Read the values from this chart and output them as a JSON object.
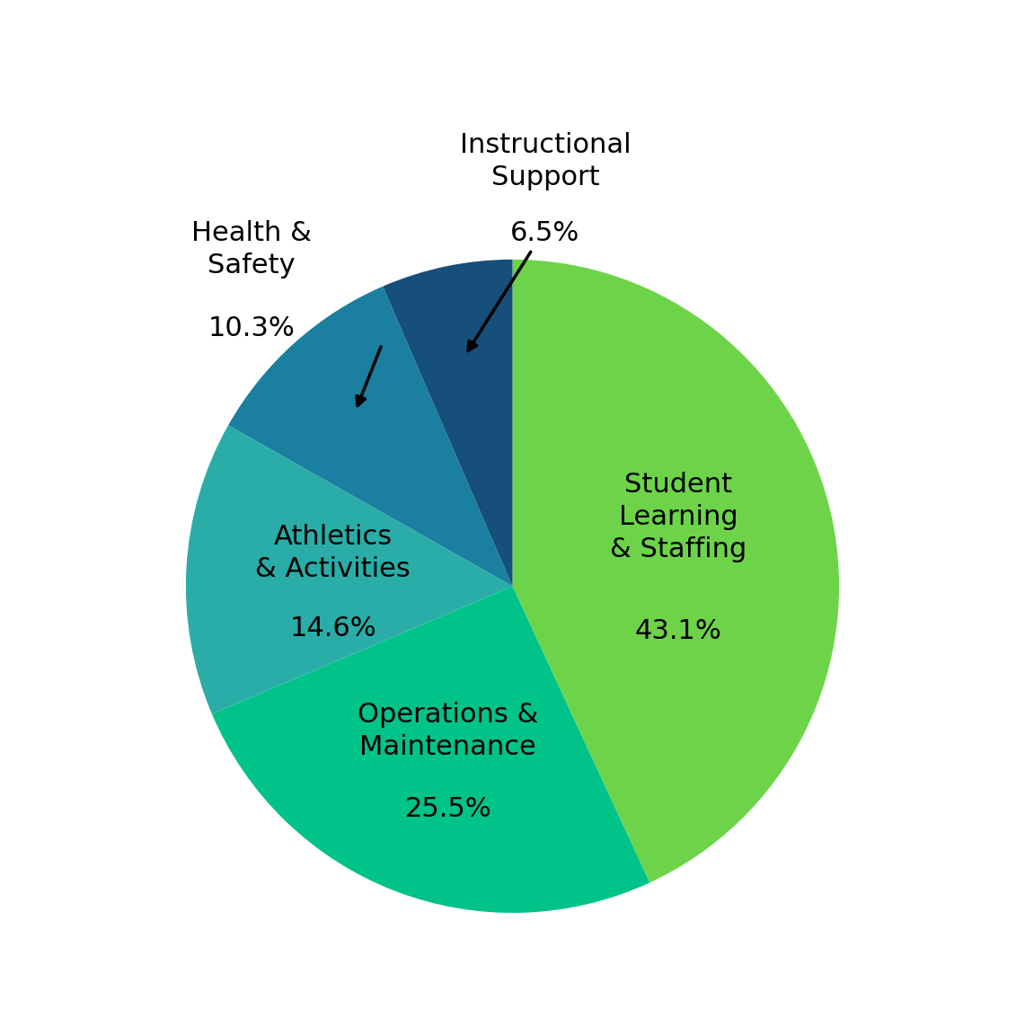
{
  "slices": [
    {
      "label": "Student Learning\n& Staffing",
      "pct_label": "43.1%",
      "value": 43.1,
      "color": "#6DD44A"
    },
    {
      "label": "Operations &\nMaintenance",
      "pct_label": "25.5%",
      "value": 25.5,
      "color": "#00C389"
    },
    {
      "label": "Athletics\n& Activities",
      "pct_label": "14.6%",
      "value": 14.6,
      "color": "#2AADA8"
    },
    {
      "label": "Health &\nSafety",
      "pct_label": "10.3%",
      "value": 10.3,
      "color": "#1A7FA0"
    },
    {
      "label": "Instructional\nSupport",
      "pct_label": "6.5%",
      "value": 6.5,
      "color": "#154F7A"
    }
  ],
  "startangle": 90,
  "background_color": "#ffffff",
  "text_color": "#000000",
  "label_fontsize": 22,
  "pct_fontsize": 22,
  "figsize": [
    11.41,
    11.23
  ],
  "dpi": 100
}
